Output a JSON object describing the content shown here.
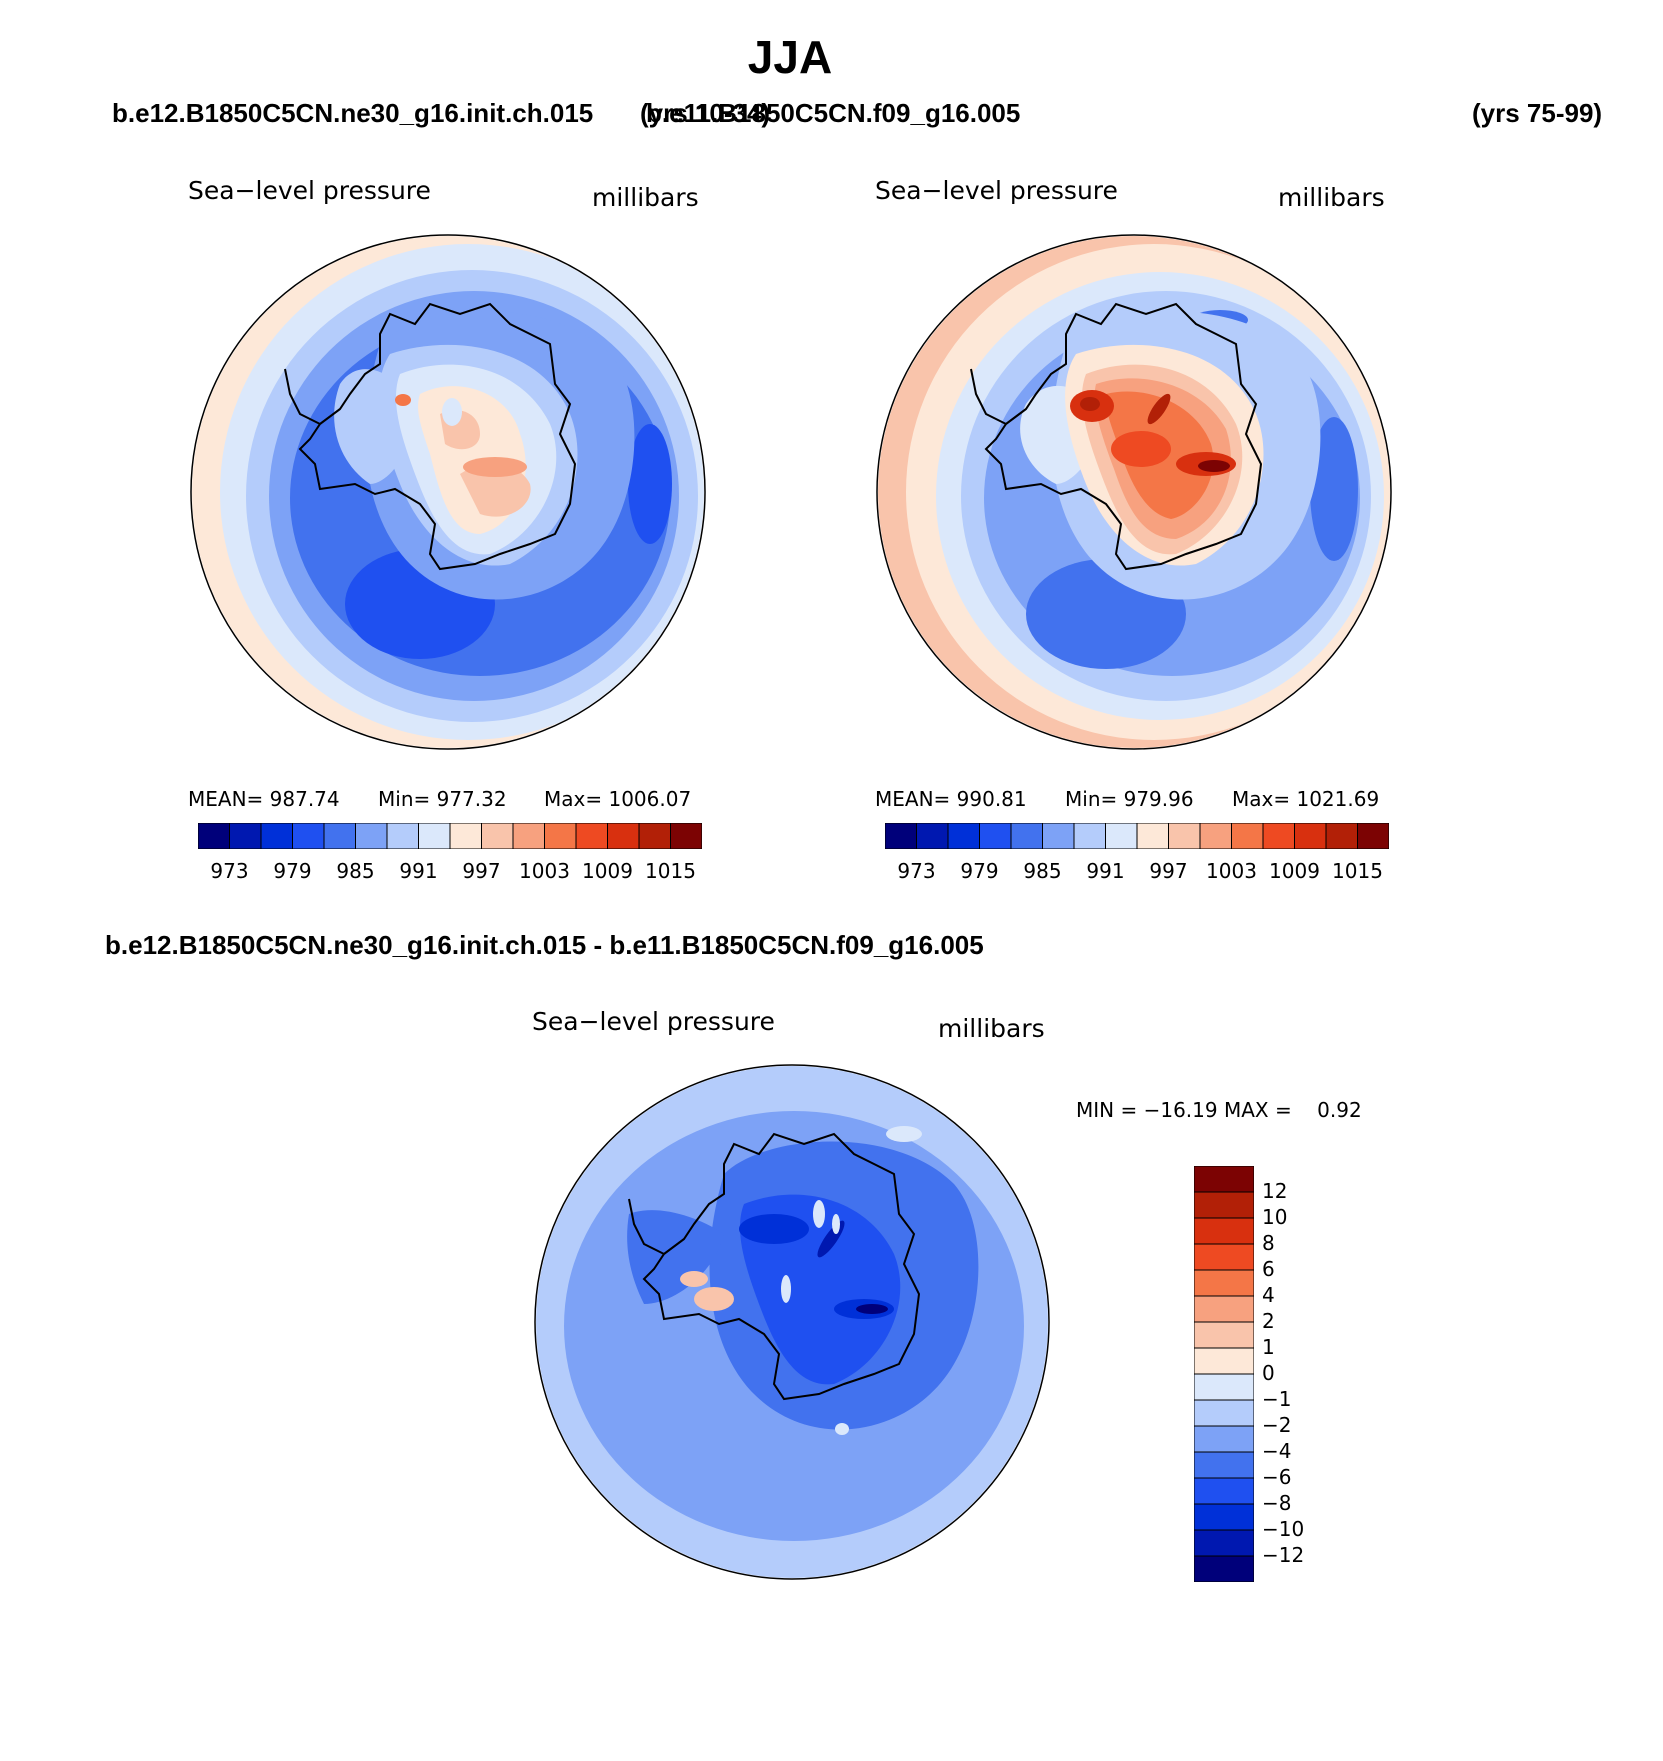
{
  "title": "JJA",
  "case1": {
    "name": "b.e12.B1850C5CN.ne30_g16.init.ch.015",
    "years": "(yrs 10-34)"
  },
  "case2": {
    "name": "b.e11.B1850C5CN.f09_g16.005",
    "years": "(yrs 75-99)"
  },
  "diff_title": "b.e12.B1850C5CN.ne30_g16.init.ch.015 - b.e11.B1850C5CN.f09_g16.005",
  "variable": "Sea−level pressure",
  "units": "millibars",
  "panel1": {
    "mean": "MEAN= 987.74",
    "min": "Min= 977.32",
    "max": "Max= 1006.07"
  },
  "panel2": {
    "mean": "MEAN= 990.81",
    "min": "Min= 979.96",
    "max": "Max= 1021.69"
  },
  "diff_panel": {
    "minmax": "MIN = −16.19 MAX =    0.92"
  },
  "abs_colorbar": {
    "colors": [
      "#00007a",
      "#0018b0",
      "#0030d8",
      "#1f50f0",
      "#4272ee",
      "#7da2f6",
      "#b4ccfb",
      "#dbe8fb",
      "#fde8d8",
      "#f9c4ab",
      "#f7a17f",
      "#f47647",
      "#ee4a22",
      "#d8300f",
      "#b22007",
      "#7c0303"
    ],
    "labels": [
      "973",
      "979",
      "985",
      "991",
      "997",
      "1003",
      "1009",
      "1015"
    ]
  },
  "diff_colorbar": {
    "colors_top_to_bottom": [
      "#7c0303",
      "#b22007",
      "#d8300f",
      "#ee4a22",
      "#f47647",
      "#f7a17f",
      "#f9c4ab",
      "#fde8d8",
      "#dbe8fb",
      "#b4ccfb",
      "#7da2f6",
      "#4272ee",
      "#1f50f0",
      "#0030d8",
      "#0018b0",
      "#00007a"
    ],
    "labels_top_to_bottom": [
      "12",
      "10",
      "8",
      "6",
      "4",
      "2",
      "1",
      "0",
      "−1",
      "−2",
      "−4",
      "−6",
      "−8",
      "−10",
      "−12"
    ]
  }
}
